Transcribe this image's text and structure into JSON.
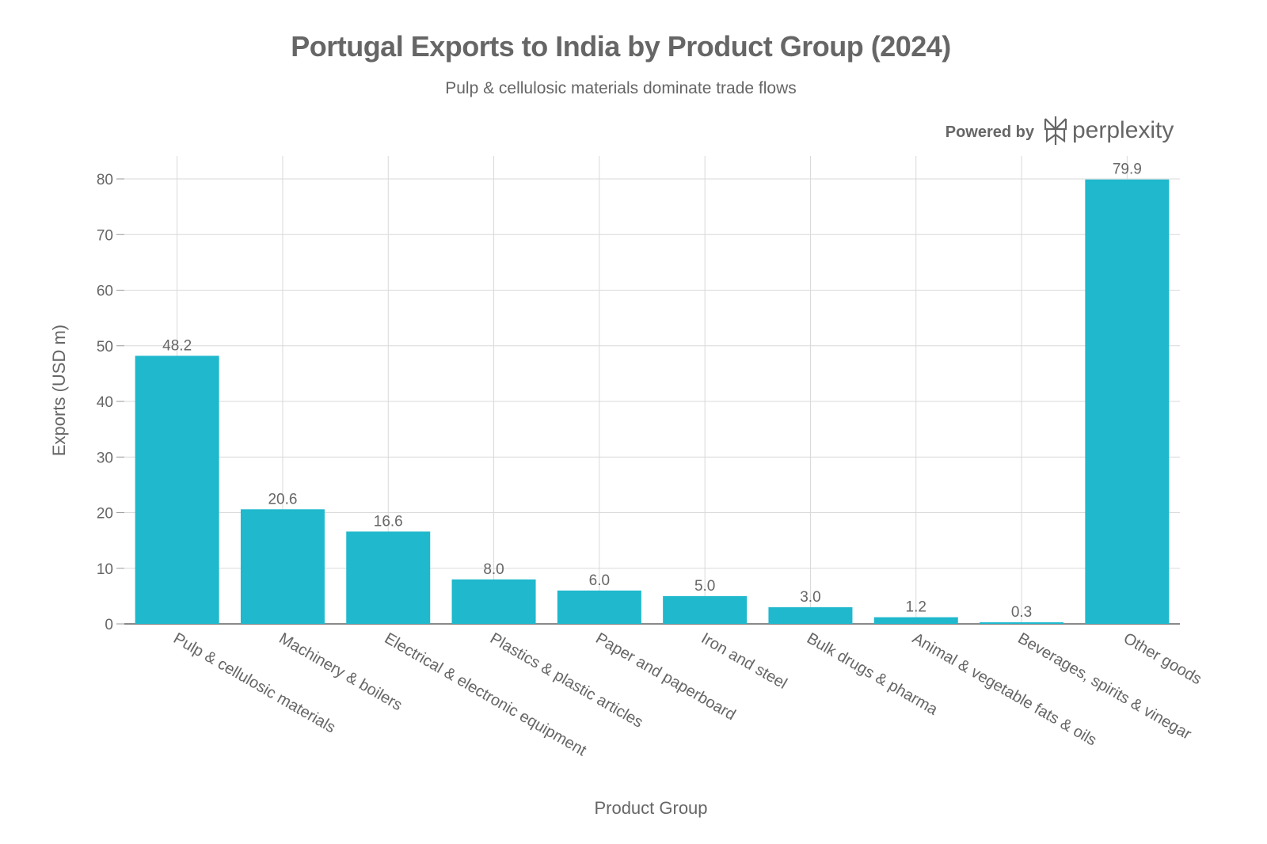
{
  "chart_data": {
    "type": "bar",
    "title": "Portugal Exports to India by Product Group (2024)",
    "subtitle": "Pulp & cellulosic materials dominate trade flows",
    "xlabel": "Product Group",
    "ylabel": "Exports (USD m)",
    "categories": [
      "Pulp & cellulosic materials",
      "Machinery & boilers",
      "Electrical & electronic equipment",
      "Plastics & plastic articles",
      "Paper and paperboard",
      "Iron and steel",
      "Bulk drugs & pharma",
      "Animal & vegetable fats & oils",
      "Beverages, spirits & vinegar",
      "Other goods"
    ],
    "values": [
      48.2,
      20.6,
      16.6,
      8.0,
      6.0,
      5.0,
      3.0,
      1.2,
      0.3,
      79.9
    ],
    "data_labels": [
      "48.2",
      "20.6",
      "16.6",
      "8.0",
      "6.0",
      "5.0",
      "3.0",
      "1.2",
      "0.3",
      "79.9"
    ],
    "ylim": [
      0,
      84
    ],
    "yticks": [
      0,
      10,
      20,
      30,
      40,
      50,
      60,
      70,
      80
    ],
    "grid": true,
    "bar_color": "#1FB8CD",
    "text_color": "#666666"
  },
  "branding": {
    "powered_by": "Powered by",
    "logo_text": "perplexity",
    "logo_icon": "perplexity-logo-icon"
  }
}
